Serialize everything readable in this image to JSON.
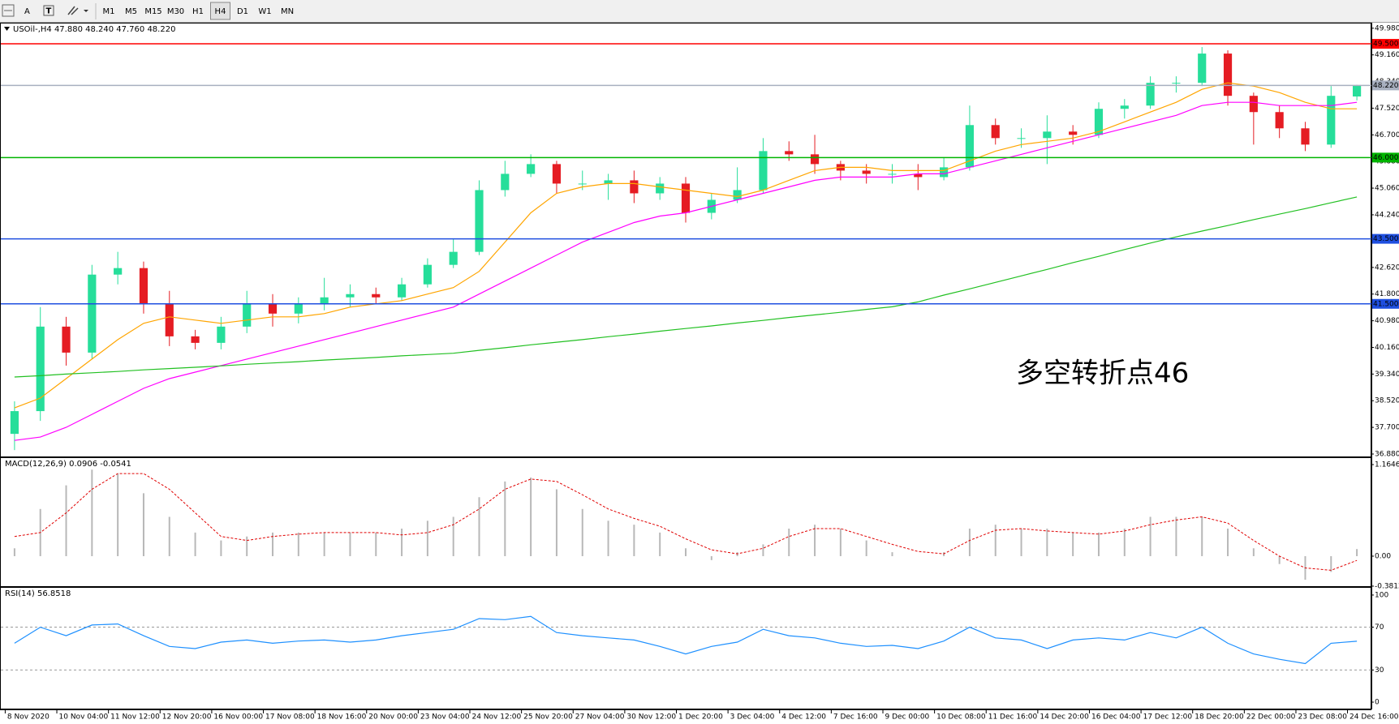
{
  "toolbar": {
    "text_button": "A",
    "timeframes": [
      "M1",
      "M5",
      "M15",
      "M30",
      "H1",
      "H4",
      "D1",
      "W1",
      "MN"
    ],
    "active": "H4"
  },
  "chart_data": [
    {
      "type": "candlestick",
      "title": "USOil-,H4  47.880 48.240 47.760 48.220",
      "categories": [
        "8 Nov 2020",
        null,
        "10 Nov 04:00",
        null,
        "11 Nov 12:00",
        null,
        "12 Nov 20:00",
        null,
        "16 Nov 00:00",
        null,
        "17 Nov 08:00",
        null,
        "18 Nov 16:00",
        null,
        "20 Nov 00:00",
        null,
        "23 Nov 04:00",
        null,
        "24 Nov 12:00",
        null,
        "25 Nov 20:00",
        null,
        "27 Nov 04:00",
        null,
        "30 Nov 12:00",
        null,
        "1 Dec 20:00",
        null,
        "3 Dec 04:00",
        null,
        "4 Dec 12:00",
        null,
        "7 Dec 16:00",
        null,
        "9 Dec 00:00",
        null,
        "10 Dec 08:00",
        null,
        "11 Dec 16:00",
        null,
        "14 Dec 20:00",
        null,
        "16 Dec 04:00",
        null,
        "17 Dec 12:00",
        null,
        "18 Dec 20:00",
        null,
        "22 Dec 00:00",
        null,
        "23 Dec 08:00",
        null,
        "24 Dec 16:00"
      ],
      "open": [
        37.5,
        38.2,
        40.8,
        40.0,
        42.4,
        42.6,
        41.5,
        40.5,
        40.3,
        40.8,
        41.5,
        41.2,
        41.5,
        41.7,
        41.8,
        41.7,
        42.1,
        42.7,
        43.1,
        45.0,
        45.5,
        45.8,
        45.2,
        45.2,
        45.3,
        44.9,
        45.2,
        44.3,
        44.7,
        45.0,
        46.2,
        46.1,
        45.8,
        45.6,
        45.5,
        45.5,
        45.4,
        45.7,
        47.0,
        46.6,
        46.6,
        46.8,
        46.7,
        47.5,
        47.6,
        48.3,
        48.3,
        49.2,
        47.9,
        47.4,
        46.9,
        46.4,
        47.88
      ],
      "high": [
        38.5,
        41.4,
        41.1,
        42.7,
        43.1,
        42.8,
        41.9,
        40.7,
        41.1,
        41.9,
        41.8,
        41.7,
        42.3,
        42.1,
        42.0,
        42.3,
        42.9,
        43.5,
        45.3,
        45.9,
        46.1,
        45.9,
        45.6,
        45.5,
        45.6,
        45.4,
        45.4,
        44.9,
        45.7,
        46.6,
        46.5,
        46.7,
        45.9,
        45.8,
        45.8,
        45.8,
        46.0,
        47.6,
        47.2,
        46.9,
        47.3,
        47.0,
        47.7,
        47.8,
        48.5,
        48.5,
        49.4,
        49.3,
        48.0,
        47.6,
        47.1,
        48.2,
        48.24
      ],
      "low": [
        37.0,
        37.9,
        39.6,
        39.8,
        42.1,
        41.2,
        40.2,
        40.1,
        40.1,
        40.6,
        40.8,
        40.9,
        41.3,
        41.4,
        41.5,
        41.6,
        42.0,
        42.6,
        43.0,
        44.8,
        45.4,
        44.9,
        45.0,
        44.7,
        44.6,
        44.7,
        44.0,
        44.1,
        44.6,
        44.9,
        45.9,
        45.5,
        45.3,
        45.2,
        45.2,
        45.0,
        45.3,
        45.6,
        46.4,
        46.3,
        45.8,
        46.4,
        46.6,
        47.2,
        47.5,
        48.0,
        48.2,
        47.6,
        46.4,
        46.6,
        46.2,
        46.3,
        47.76
      ],
      "close": [
        38.2,
        40.8,
        40.0,
        42.4,
        42.6,
        41.5,
        40.5,
        40.3,
        40.8,
        41.5,
        41.2,
        41.5,
        41.7,
        41.8,
        41.7,
        42.1,
        42.7,
        43.1,
        45.0,
        45.5,
        45.8,
        45.2,
        45.2,
        45.3,
        44.9,
        45.2,
        44.3,
        44.7,
        45.0,
        46.2,
        46.1,
        45.8,
        45.6,
        45.5,
        45.5,
        45.4,
        45.7,
        47.0,
        46.6,
        46.6,
        46.8,
        46.7,
        47.5,
        47.6,
        48.3,
        48.3,
        49.2,
        47.9,
        47.4,
        46.9,
        46.4,
        47.9,
        48.22
      ],
      "up_color": "#26de9a",
      "down_color": "#e51c23",
      "series": [
        {
          "color": "#ffa500",
          "values": [
            38.3,
            38.6,
            39.2,
            39.8,
            40.4,
            40.9,
            41.1,
            41.0,
            40.9,
            41.0,
            41.1,
            41.1,
            41.2,
            41.4,
            41.5,
            41.6,
            41.8,
            42.0,
            42.5,
            43.4,
            44.3,
            44.9,
            45.1,
            45.2,
            45.2,
            45.1,
            45.0,
            44.9,
            44.8,
            45.0,
            45.3,
            45.6,
            45.7,
            45.7,
            45.6,
            45.6,
            45.6,
            45.9,
            46.2,
            46.4,
            46.5,
            46.6,
            46.8,
            47.1,
            47.4,
            47.7,
            48.1,
            48.3,
            48.2,
            48.0,
            47.7,
            47.5,
            47.5
          ]
        },
        {
          "color": "#ff00ff",
          "values": [
            37.3,
            37.4,
            37.7,
            38.1,
            38.5,
            38.9,
            39.2,
            39.4,
            39.6,
            39.8,
            40.0,
            40.2,
            40.4,
            40.6,
            40.8,
            41.0,
            41.2,
            41.4,
            41.8,
            42.2,
            42.6,
            43.0,
            43.4,
            43.7,
            44.0,
            44.2,
            44.3,
            44.5,
            44.7,
            44.9,
            45.1,
            45.3,
            45.4,
            45.4,
            45.4,
            45.5,
            45.5,
            45.7,
            45.9,
            46.1,
            46.3,
            46.5,
            46.7,
            46.9,
            47.1,
            47.3,
            47.6,
            47.7,
            47.7,
            47.6,
            47.6,
            47.6,
            47.7
          ]
        },
        {
          "color": "#22c022",
          "values": [
            39.25,
            39.29,
            39.34,
            39.38,
            39.42,
            39.47,
            39.51,
            39.55,
            39.59,
            39.64,
            39.68,
            39.72,
            39.77,
            39.81,
            39.85,
            39.9,
            39.94,
            39.98,
            40.07,
            40.15,
            40.24,
            40.32,
            40.4,
            40.49,
            40.57,
            40.66,
            40.74,
            40.82,
            40.91,
            40.99,
            41.08,
            41.16,
            41.24,
            41.33,
            41.41,
            41.56,
            41.77,
            41.96,
            42.16,
            42.36,
            42.56,
            42.77,
            42.96,
            43.17,
            43.37,
            43.56,
            43.74,
            43.91,
            44.09,
            44.26,
            44.43,
            44.61,
            44.79
          ]
        }
      ],
      "levels": [
        {
          "value": 49.5,
          "label": "49.500",
          "color": "#ff0000",
          "text_color": "#ffffff"
        },
        {
          "value": 48.22,
          "label": "48.220",
          "color": "#a8b0c0",
          "text_color": "#000000"
        },
        {
          "value": 46.0,
          "label": "46.000",
          "color": "#00b400",
          "text_color": "#ffffff"
        },
        {
          "value": 43.5,
          "label": "43.500",
          "color": "#1f4fe0",
          "text_color": "#ffffff"
        },
        {
          "value": 41.5,
          "label": "41.500",
          "color": "#1f4fe0",
          "text_color": "#ffffff"
        }
      ],
      "annotation": {
        "text": "多空转折点46",
        "color": "#e02020"
      },
      "ylim": [
        36.78,
        50.1
      ],
      "yticks": [
        {
          "value": 36.88,
          "label": "36.880"
        },
        {
          "value": 37.7,
          "label": "37.700"
        },
        {
          "value": 38.52,
          "label": "38.520"
        },
        {
          "value": 39.34,
          "label": "39.340"
        },
        {
          "value": 40.16,
          "label": "40.160"
        },
        {
          "value": 40.98,
          "label": "40.980"
        },
        {
          "value": 41.8,
          "label": "41.800"
        },
        {
          "value": 42.62,
          "label": "42.620"
        },
        {
          "value": 43.44,
          "label": "43.440"
        },
        {
          "value": 44.24,
          "label": "44.240"
        },
        {
          "value": 45.06,
          "label": "45.060"
        },
        {
          "value": 45.88,
          "label": "45.880"
        },
        {
          "value": 46.7,
          "label": "46.700"
        },
        {
          "value": 47.52,
          "label": "47.520"
        },
        {
          "value": 48.34,
          "label": "48.340"
        },
        {
          "value": 49.16,
          "label": "49.160"
        },
        {
          "value": 49.98,
          "label": "49.980"
        }
      ]
    },
    {
      "type": "macd",
      "title": "MACD(12,26,9) 0.0906 -0.0541",
      "histogram": {
        "color": "#b8b8b8",
        "values": [
          0.1,
          0.6,
          0.9,
          1.1,
          1.05,
          0.8,
          0.5,
          0.3,
          0.2,
          0.25,
          0.3,
          0.3,
          0.3,
          0.3,
          0.3,
          0.35,
          0.45,
          0.5,
          0.75,
          0.95,
          1.0,
          0.85,
          0.6,
          0.45,
          0.4,
          0.3,
          0.1,
          -0.05,
          0.05,
          0.15,
          0.35,
          0.4,
          0.35,
          0.2,
          0.05,
          0.0,
          0.05,
          0.35,
          0.4,
          0.35,
          0.35,
          0.3,
          0.3,
          0.35,
          0.5,
          0.5,
          0.5,
          0.35,
          0.1,
          -0.1,
          -0.3,
          -0.2,
          0.0906
        ]
      },
      "signal": {
        "color": "#e00000",
        "values": [
          0.25,
          0.3,
          0.55,
          0.85,
          1.05,
          1.05,
          0.85,
          0.55,
          0.25,
          0.2,
          0.25,
          0.28,
          0.3,
          0.3,
          0.3,
          0.27,
          0.3,
          0.4,
          0.6,
          0.85,
          0.98,
          0.95,
          0.78,
          0.6,
          0.48,
          0.38,
          0.22,
          0.08,
          0.03,
          0.1,
          0.25,
          0.35,
          0.35,
          0.25,
          0.15,
          0.06,
          0.03,
          0.2,
          0.33,
          0.35,
          0.32,
          0.3,
          0.28,
          0.32,
          0.4,
          0.46,
          0.5,
          0.42,
          0.2,
          0.0,
          -0.15,
          -0.18,
          -0.0541
        ]
      },
      "ylim": [
        -0.392,
        1.237
      ],
      "yticks": [
        -0.3812,
        {
          "value": 0,
          "label": "0.00"
        },
        1.1646
      ]
    },
    {
      "type": "line",
      "title": "RSI(14) 56.8518",
      "color": "#1e90ff",
      "values": [
        55,
        70,
        62,
        72,
        73,
        62,
        52,
        50,
        56,
        58,
        55,
        57,
        58,
        56,
        58,
        62,
        65,
        68,
        78,
        77,
        80,
        65,
        62,
        60,
        58,
        52,
        45,
        52,
        56,
        68,
        62,
        60,
        55,
        52,
        53,
        50,
        57,
        70,
        60,
        58,
        50,
        58,
        60,
        58,
        65,
        60,
        70,
        55,
        45,
        40,
        36,
        55,
        56.8518
      ],
      "levels": [
        30,
        70
      ],
      "ylim": [
        -6.8,
        106
      ],
      "yticks": [
        0,
        30,
        70,
        100
      ]
    }
  ]
}
